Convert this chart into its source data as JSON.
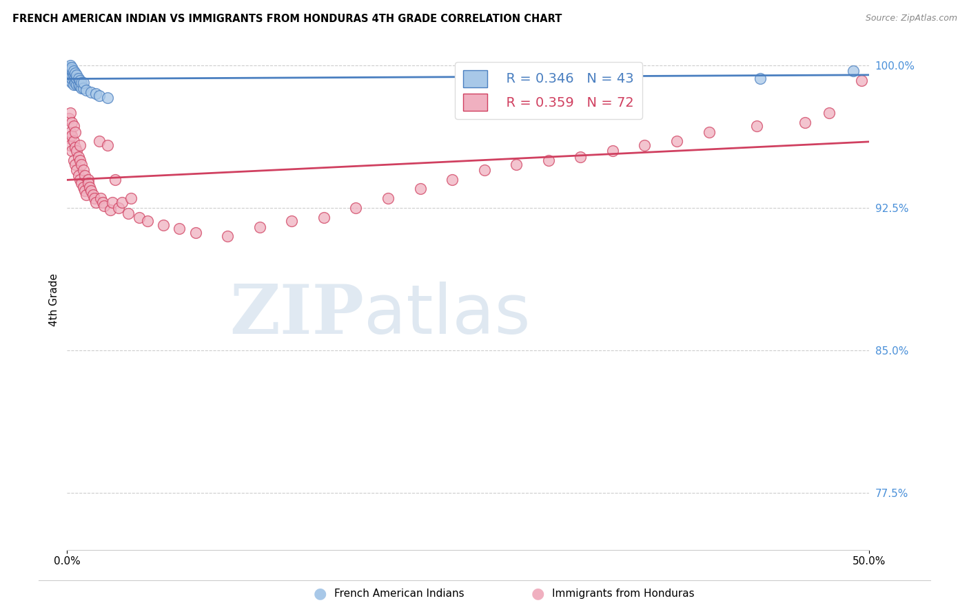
{
  "title": "FRENCH AMERICAN INDIAN VS IMMIGRANTS FROM HONDURAS 4TH GRADE CORRELATION CHART",
  "source": "Source: ZipAtlas.com",
  "ylabel": "4th Grade",
  "blue_R": 0.346,
  "blue_N": 43,
  "pink_R": 0.359,
  "pink_N": 72,
  "blue_label": "French American Indians",
  "pink_label": "Immigrants from Honduras",
  "background_color": "#ffffff",
  "blue_color": "#a8c8e8",
  "pink_color": "#f0b0c0",
  "blue_line_color": "#4a7fc0",
  "pink_line_color": "#d04060",
  "blue_scatter_x": [
    0.001,
    0.001,
    0.001,
    0.001,
    0.002,
    0.002,
    0.002,
    0.002,
    0.002,
    0.002,
    0.002,
    0.003,
    0.003,
    0.003,
    0.003,
    0.003,
    0.003,
    0.004,
    0.004,
    0.004,
    0.004,
    0.005,
    0.005,
    0.005,
    0.006,
    0.006,
    0.006,
    0.007,
    0.007,
    0.008,
    0.008,
    0.009,
    0.009,
    0.01,
    0.01,
    0.012,
    0.015,
    0.018,
    0.02,
    0.025,
    0.355,
    0.432,
    0.49
  ],
  "blue_scatter_y": [
    0.994,
    0.996,
    0.998,
    0.999,
    0.992,
    0.994,
    0.996,
    0.997,
    0.998,
    0.999,
    1.0,
    0.991,
    0.993,
    0.995,
    0.997,
    0.998,
    0.999,
    0.99,
    0.993,
    0.995,
    0.997,
    0.991,
    0.994,
    0.996,
    0.99,
    0.993,
    0.995,
    0.99,
    0.993,
    0.989,
    0.992,
    0.988,
    0.991,
    0.988,
    0.991,
    0.987,
    0.986,
    0.985,
    0.984,
    0.983,
    0.996,
    0.993,
    0.997
  ],
  "pink_scatter_x": [
    0.001,
    0.001,
    0.002,
    0.002,
    0.002,
    0.003,
    0.003,
    0.003,
    0.004,
    0.004,
    0.004,
    0.005,
    0.005,
    0.005,
    0.006,
    0.006,
    0.007,
    0.007,
    0.008,
    0.008,
    0.008,
    0.009,
    0.009,
    0.01,
    0.01,
    0.011,
    0.011,
    0.012,
    0.013,
    0.013,
    0.014,
    0.015,
    0.016,
    0.017,
    0.018,
    0.02,
    0.021,
    0.022,
    0.023,
    0.025,
    0.027,
    0.028,
    0.03,
    0.032,
    0.034,
    0.038,
    0.04,
    0.045,
    0.05,
    0.06,
    0.07,
    0.08,
    0.1,
    0.12,
    0.14,
    0.16,
    0.18,
    0.2,
    0.22,
    0.24,
    0.26,
    0.28,
    0.3,
    0.32,
    0.34,
    0.36,
    0.38,
    0.4,
    0.43,
    0.46,
    0.475,
    0.495
  ],
  "pink_scatter_y": [
    0.962,
    0.972,
    0.958,
    0.965,
    0.975,
    0.955,
    0.963,
    0.97,
    0.95,
    0.96,
    0.968,
    0.948,
    0.957,
    0.965,
    0.945,
    0.955,
    0.942,
    0.952,
    0.94,
    0.95,
    0.958,
    0.938,
    0.948,
    0.936,
    0.945,
    0.934,
    0.942,
    0.932,
    0.94,
    0.938,
    0.936,
    0.934,
    0.932,
    0.93,
    0.928,
    0.96,
    0.93,
    0.928,
    0.926,
    0.958,
    0.924,
    0.928,
    0.94,
    0.925,
    0.928,
    0.922,
    0.93,
    0.92,
    0.918,
    0.916,
    0.914,
    0.912,
    0.91,
    0.915,
    0.918,
    0.92,
    0.925,
    0.93,
    0.935,
    0.94,
    0.945,
    0.948,
    0.95,
    0.952,
    0.955,
    0.958,
    0.96,
    0.965,
    0.968,
    0.97,
    0.975,
    0.992
  ],
  "xlim": [
    0.0,
    0.5
  ],
  "ylim": [
    0.745,
    1.008
  ],
  "y_tick_vals": [
    0.775,
    0.85,
    0.925,
    1.0
  ],
  "y_tick_labels": [
    "77.5%",
    "85.0%",
    "92.5%",
    "100.0%"
  ],
  "x_tick_vals": [
    0.0,
    0.5
  ],
  "x_tick_labels": [
    "0.0%",
    "50.0%"
  ],
  "grid_color": "#cccccc"
}
